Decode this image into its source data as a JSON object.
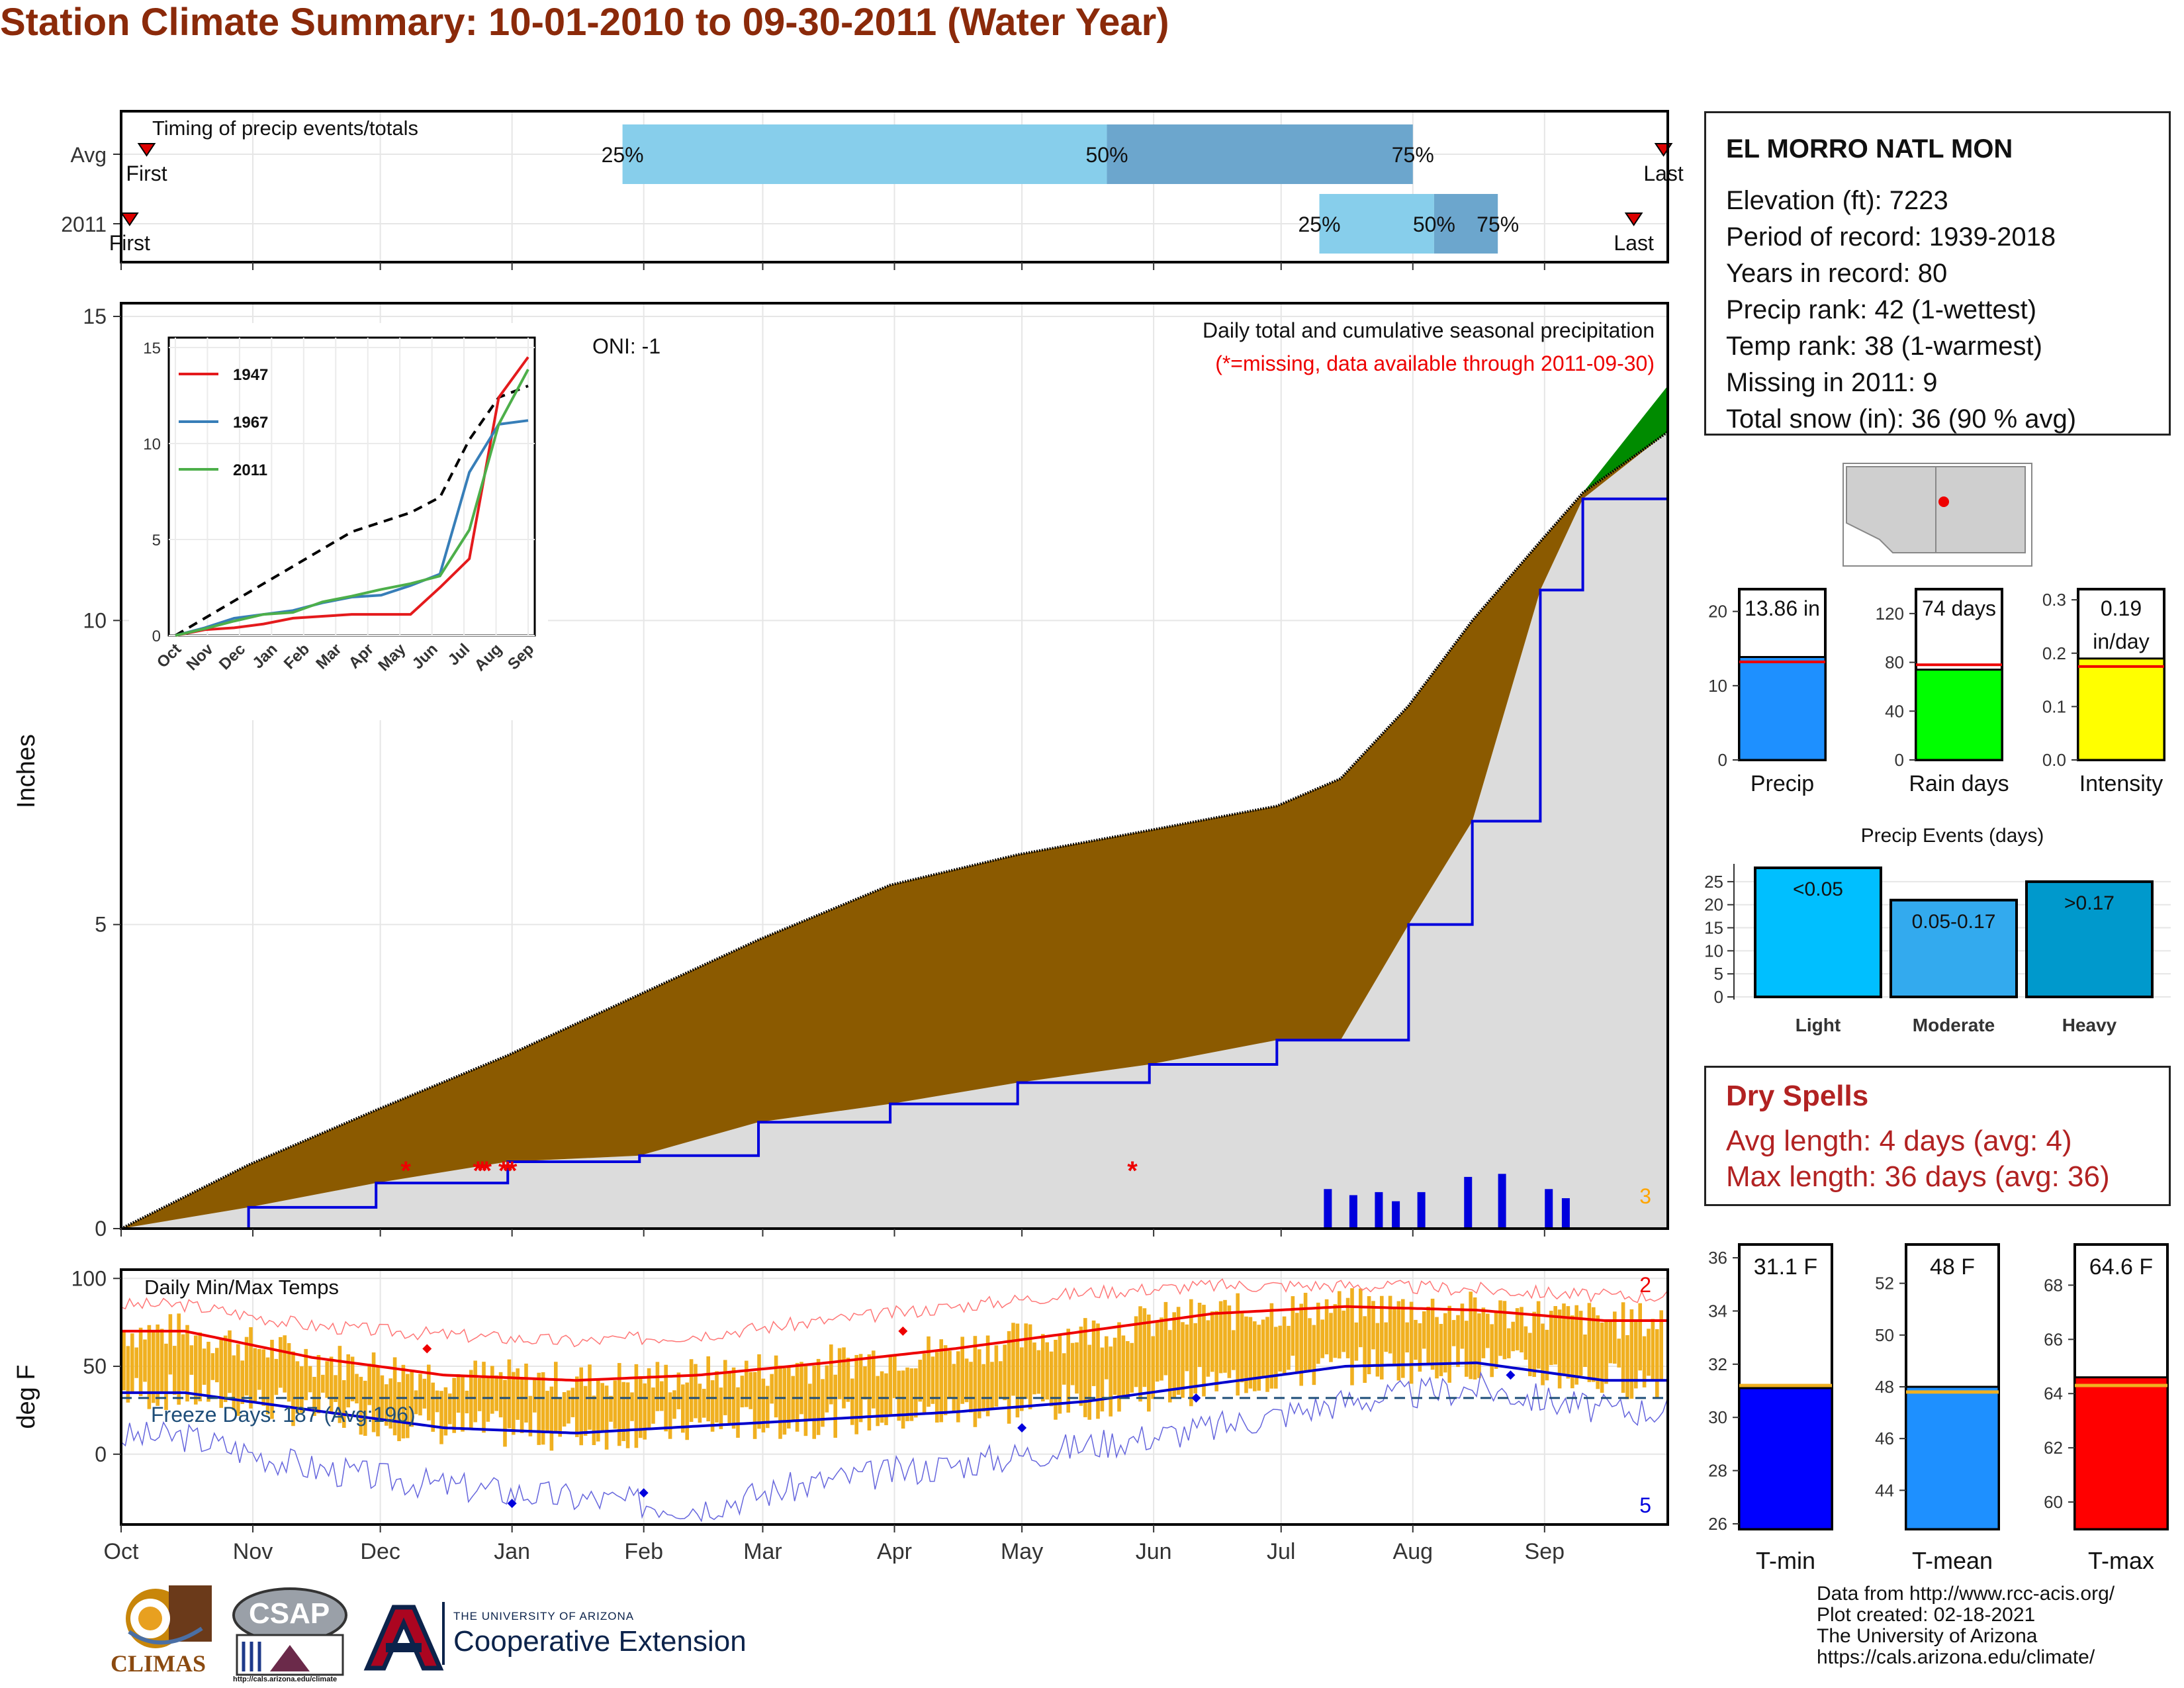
{
  "title": "Station Climate Summary: 10-01-2010 to 09-30-2011 (Water Year)",
  "colors": {
    "title": "#8B2A0A",
    "cum_avg_fill": "#8B5A00",
    "cum_above_fill": "#008B00",
    "cum_line": "#0000DD",
    "temp_bar": "#F0B020",
    "tmax_line": "#EE0000",
    "tmin_line": "#0000CC",
    "dry": "#B22222"
  },
  "timing": {
    "label": "Timing of precip events/totals",
    "rows": [
      "Avg",
      "2011"
    ],
    "avg": {
      "first_label": "First",
      "last_label": "Last",
      "p25": "25%",
      "p50": "50%",
      "p75": "75%"
    },
    "y2011": {
      "first_label": "First",
      "last_label": "Last",
      "p25": "25%",
      "p50": "50%",
      "p75": "75%"
    }
  },
  "precip_panel": {
    "ylabel": "Inches",
    "y_ticks": [
      "0",
      "5",
      "10",
      "15"
    ],
    "oni": "ONI: -1",
    "caption": "Daily total and cumulative seasonal precipitation",
    "missing_note": "(*=missing, data available through 2011-09-30)",
    "max_daily_label": "3"
  },
  "inset": {
    "y_ticks": [
      "0",
      "5",
      "10",
      "15"
    ],
    "x_ticks": [
      "Oct",
      "Nov",
      "Dec",
      "Jan",
      "Feb",
      "Mar",
      "Apr",
      "May",
      "Jun",
      "Jul",
      "Aug",
      "Sep"
    ],
    "legend": [
      "1947",
      "1967",
      "2011"
    ],
    "colors": [
      "#E41A1C",
      "#377EB8",
      "#4DAF4A"
    ]
  },
  "temp_panel": {
    "ylabel": "deg F",
    "title": "Daily Min/Max Temps",
    "y_ticks": [
      "0",
      "50",
      "100"
    ],
    "freeze": "Freeze Days: 187 (Avg:196)",
    "max_count": "2",
    "min_count": "5"
  },
  "months": [
    "Oct",
    "Nov",
    "Dec",
    "Jan",
    "Feb",
    "Mar",
    "Apr",
    "May",
    "Jun",
    "Jul",
    "Aug",
    "Sep"
  ],
  "station": {
    "name": "EL MORRO NATL MON",
    "lines": [
      "Elevation (ft): 7223",
      "Period of record: 1939-2018",
      "Years in record: 80",
      "Precip rank: 42 (1-wettest)",
      "Temp rank: 38 (1-warmest)",
      "Missing in 2011: 9",
      "Total snow (in): 36 (90 % avg)"
    ]
  },
  "mini_bars": [
    {
      "label": "Precip",
      "value_label": "13.86 in",
      "ticks": [
        "0",
        "10",
        "20"
      ],
      "color": "#1E90FF"
    },
    {
      "label": "Rain days",
      "value_label": "74 days",
      "ticks": [
        "0",
        "40",
        "80",
        "120"
      ],
      "color": "#00FF00"
    },
    {
      "label": "Intensity",
      "value_label": "0.19",
      "value_label2": "in/day",
      "ticks": [
        "0.0",
        "0.1",
        "0.2",
        "0.3"
      ],
      "color": "#FFFF00"
    }
  ],
  "precip_events": {
    "title": "Precip Events (days)",
    "ticks": [
      "0",
      "5",
      "10",
      "15",
      "20",
      "25"
    ],
    "categories": [
      "Light",
      "Moderate",
      "Heavy"
    ],
    "bar_labels": [
      "<0.05",
      "0.05-0.17",
      ">0.17"
    ]
  },
  "dry_spells": {
    "title": "Dry Spells",
    "avg_length": "Avg length: 4 days (avg: 4)",
    "max_length": "Max length: 36 days (avg: 36)"
  },
  "temp_bars": [
    {
      "label": "T-min",
      "value_label": "31.1 F",
      "ticks": [
        "26",
        "28",
        "30",
        "32",
        "34",
        "36"
      ],
      "color": "#0000FF"
    },
    {
      "label": "T-mean",
      "value_label": "48 F",
      "ticks": [
        "44",
        "46",
        "48",
        "50",
        "52"
      ],
      "color": "#1E90FF"
    },
    {
      "label": "T-max",
      "value_label": "64.6 F",
      "ticks": [
        "60",
        "62",
        "64",
        "66",
        "68"
      ],
      "color": "#FF0000"
    }
  ],
  "credits": [
    "Data from http://www.rcc-acis.org/",
    "Plot created: 02-18-2021",
    "The University of Arizona",
    "https://cals.arizona.edu/climate/"
  ],
  "logos": {
    "climas": "CLIMAS",
    "csap": "CSAP",
    "csap_url": "http://cals.arizona.edu/climate",
    "ua_small": "THE UNIVERSITY OF ARIZONA",
    "coop_ext": "Cooperative Extension"
  },
  "chart_data": [
    {
      "type": "bar",
      "title": "Timing of precip events/totals",
      "categories": [
        "Avg",
        "2011"
      ],
      "series": [
        {
          "name": "Avg",
          "values": {
            "first": "2010-10-07",
            "p25": "2011-01-27",
            "p50": "2011-05-21",
            "p75": "2011-08-01",
            "last": "2011-09-29"
          }
        },
        {
          "name": "2011",
          "values": {
            "first": "2010-10-03",
            "p25": "2011-07-10",
            "p50": "2011-08-06",
            "p75": "2011-08-21",
            "last": "2011-09-22"
          }
        }
      ]
    },
    {
      "type": "area",
      "title": "Daily total and cumulative seasonal precipitation",
      "ylabel": "Inches",
      "ylim": [
        0,
        15
      ],
      "x": [
        "2010-10-01",
        "2010-10-31",
        "2010-11-30",
        "2010-12-31",
        "2011-01-31",
        "2011-02-28",
        "2011-03-31",
        "2011-04-30",
        "2011-05-31",
        "2011-06-30",
        "2011-07-15",
        "2011-07-31",
        "2011-08-15",
        "2011-08-31",
        "2011-09-10",
        "2011-09-30"
      ],
      "series": [
        {
          "name": "Average cumulative",
          "values": [
            0,
            1.05,
            1.95,
            2.85,
            3.85,
            4.75,
            5.65,
            6.15,
            6.55,
            6.95,
            7.4,
            8.6,
            10.0,
            11.3,
            12.1,
            13.1
          ]
        },
        {
          "name": "2011 cumulative",
          "values": [
            0,
            0.35,
            0.75,
            1.1,
            1.2,
            1.75,
            2.05,
            2.4,
            2.7,
            3.1,
            3.1,
            5.0,
            6.7,
            10.5,
            12.0,
            13.86
          ]
        }
      ],
      "daily_precip_2011": [
        {
          "date": "2011-07-12",
          "value": 0.65
        },
        {
          "date": "2011-07-18",
          "value": 0.55
        },
        {
          "date": "2011-07-24",
          "value": 0.6
        },
        {
          "date": "2011-07-28",
          "value": 0.45
        },
        {
          "date": "2011-08-03",
          "value": 0.6
        },
        {
          "date": "2011-08-14",
          "value": 0.85
        },
        {
          "date": "2011-08-22",
          "value": 0.9
        },
        {
          "date": "2011-09-02",
          "value": 0.65
        },
        {
          "date": "2011-09-06",
          "value": 0.5
        }
      ]
    },
    {
      "type": "line",
      "title": "Daily Min/Max Temps",
      "ylabel": "deg F",
      "ylim": [
        -40,
        105
      ],
      "x": [
        "Oct",
        "Nov",
        "Dec",
        "Jan",
        "Feb",
        "Mar",
        "Apr",
        "May",
        "Jun",
        "Jul",
        "Aug",
        "Sep"
      ],
      "series": [
        {
          "name": "Avg Tmax",
          "values": [
            70,
            55,
            45,
            42,
            45,
            52,
            60,
            70,
            80,
            84,
            82,
            76
          ]
        },
        {
          "name": "Avg Tmin",
          "values": [
            35,
            25,
            15,
            12,
            16,
            20,
            24,
            30,
            40,
            50,
            52,
            42
          ]
        },
        {
          "name": "Record Tmax",
          "values": [
            85,
            73,
            68,
            64,
            68,
            76,
            84,
            92,
            96,
            96,
            94,
            90
          ]
        },
        {
          "name": "Record Tmin",
          "values": [
            10,
            -8,
            -18,
            -25,
            -30,
            -15,
            -6,
            5,
            15,
            30,
            38,
            25
          ]
        }
      ]
    }
  ]
}
